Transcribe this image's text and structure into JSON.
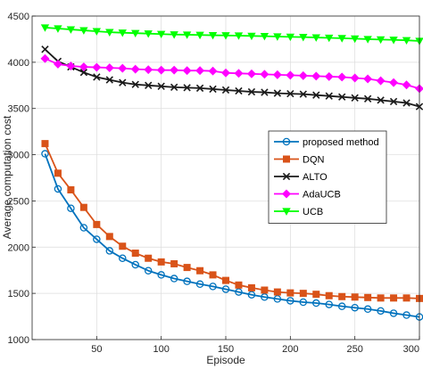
{
  "chart_data": {
    "type": "line",
    "title": "",
    "xlabel": "Episode",
    "ylabel": "Average computation cost",
    "xlim": [
      0,
      300
    ],
    "ylim": [
      1000,
      4500
    ],
    "x_ticks": [
      50,
      100,
      150,
      200,
      250,
      300
    ],
    "y_ticks": [
      1000,
      1500,
      2000,
      2500,
      3000,
      3500,
      4000,
      4500
    ],
    "grid": true,
    "legend_position": "right-middle",
    "x": [
      10,
      20,
      30,
      40,
      50,
      60,
      70,
      80,
      90,
      100,
      110,
      120,
      130,
      140,
      150,
      160,
      170,
      180,
      190,
      200,
      210,
      220,
      230,
      240,
      250,
      260,
      270,
      280,
      290,
      300
    ],
    "series": [
      {
        "name": "proposed method",
        "color": "#0072BD",
        "marker": "circle",
        "values": [
          3010,
          2630,
          2420,
          2210,
          2085,
          1960,
          1880,
          1810,
          1745,
          1700,
          1660,
          1630,
          1600,
          1575,
          1545,
          1515,
          1485,
          1460,
          1440,
          1420,
          1405,
          1395,
          1380,
          1360,
          1345,
          1330,
          1310,
          1285,
          1265,
          1245
        ]
      },
      {
        "name": "DQN",
        "color": "#D95319",
        "marker": "square",
        "values": [
          3120,
          2800,
          2620,
          2430,
          2245,
          2115,
          2010,
          1935,
          1880,
          1840,
          1820,
          1780,
          1745,
          1700,
          1640,
          1590,
          1560,
          1535,
          1515,
          1505,
          1500,
          1490,
          1475,
          1465,
          1460,
          1455,
          1450,
          1450,
          1450,
          1445
        ]
      },
      {
        "name": "ALTO",
        "color": "#1a1a1a",
        "marker": "x",
        "values": [
          4140,
          4010,
          3950,
          3890,
          3840,
          3810,
          3780,
          3760,
          3750,
          3740,
          3730,
          3725,
          3720,
          3710,
          3700,
          3690,
          3680,
          3675,
          3665,
          3660,
          3655,
          3645,
          3635,
          3625,
          3615,
          3605,
          3590,
          3575,
          3560,
          3520
        ]
      },
      {
        "name": "AdaUCB",
        "color": "#FF00FF",
        "marker": "diamond",
        "values": [
          4040,
          3980,
          3960,
          3950,
          3945,
          3940,
          3935,
          3925,
          3920,
          3915,
          3915,
          3910,
          3910,
          3905,
          3885,
          3880,
          3875,
          3870,
          3865,
          3860,
          3855,
          3850,
          3845,
          3840,
          3830,
          3820,
          3800,
          3780,
          3755,
          3715
        ]
      },
      {
        "name": "UCB",
        "color": "#00FF00",
        "marker": "triangle-down",
        "values": [
          4375,
          4365,
          4355,
          4345,
          4335,
          4325,
          4320,
          4315,
          4310,
          4305,
          4300,
          4298,
          4295,
          4292,
          4290,
          4288,
          4285,
          4282,
          4278,
          4275,
          4272,
          4268,
          4264,
          4260,
          4255,
          4250,
          4246,
          4242,
          4238,
          4230
        ]
      }
    ]
  }
}
